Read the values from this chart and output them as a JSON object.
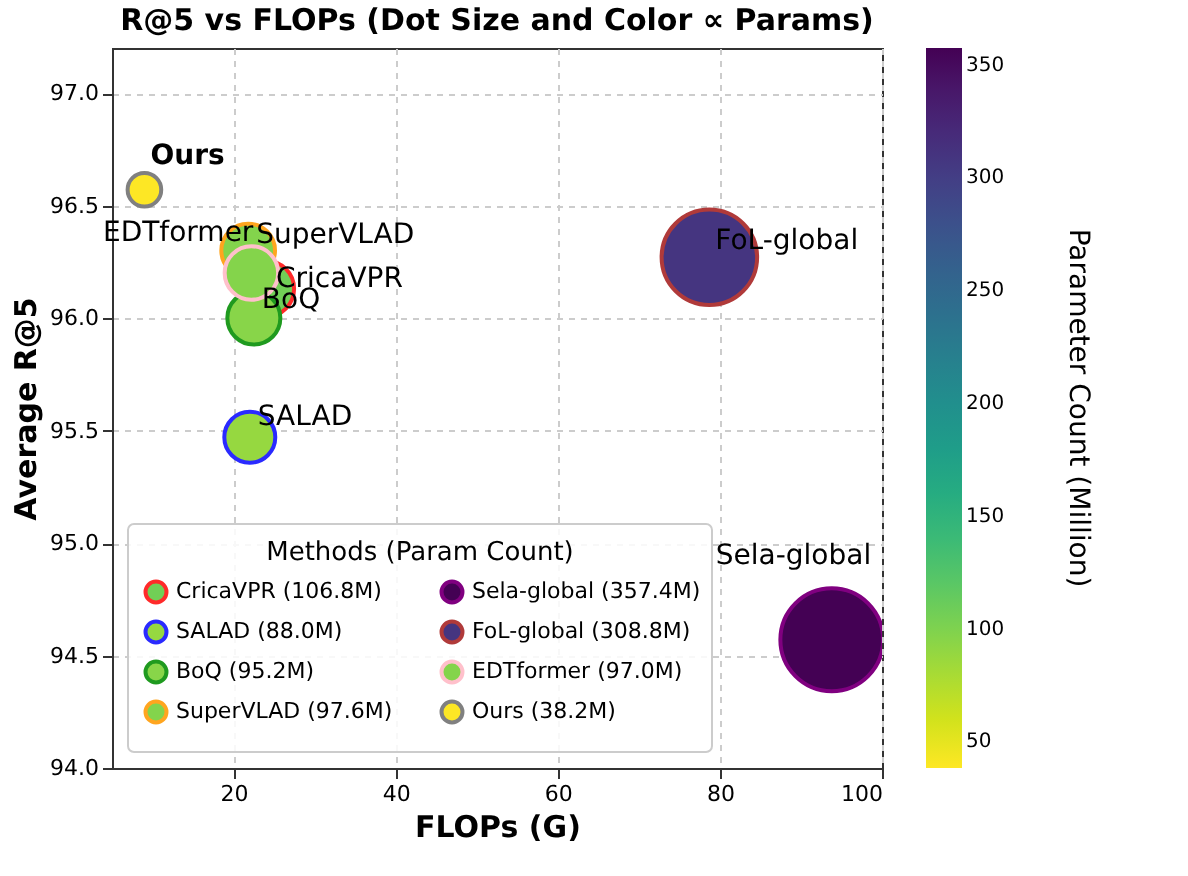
{
  "chart_data": {
    "type": "bubble",
    "title": "R@5 vs FLOPs (Dot Size and Color ∝ Params)",
    "xlabel": "FLOPs (G)",
    "ylabel": "Average R@5",
    "clabel": "Parameter Count (Million)",
    "legend_title": "Methods (Param Count)",
    "xlim": [
      5,
      100
    ],
    "xticks": [
      20,
      40,
      60,
      80,
      100
    ],
    "ylim": [
      94.0,
      97.2
    ],
    "yticks": [
      {
        "value": 94,
        "label": "94.0"
      },
      94.5,
      {
        "value": 95,
        "label": "95.0"
      },
      95.5,
      {
        "value": 96,
        "label": "96.0"
      },
      96.5,
      {
        "value": 97,
        "label": "97.0"
      }
    ],
    "clim": [
      38.2,
      357.4
    ],
    "cticks": [
      50,
      100,
      150,
      200,
      250,
      300,
      350
    ],
    "grid": true,
    "legend": "bottom left",
    "marker": "circle",
    "series": [
      {
        "name": "CricaVPR (106.8M)",
        "color": "#ff2a2a",
        "x": [
          24.0
        ],
        "values": [
          96.13
        ],
        "sizes": [
          0.299
        ],
        "cvalues": [
          106.8
        ]
      },
      {
        "name": "SALAD (88.0M)",
        "color": "#2a2aff",
        "x": [
          22.0
        ],
        "values": [
          95.47
        ],
        "sizes": [
          0.246
        ],
        "cvalues": [
          88.0
        ]
      },
      {
        "name": "BoQ (95.2M)",
        "color": "#1f9a1f",
        "x": [
          22.5
        ],
        "values": [
          96.0
        ],
        "sizes": [
          0.266
        ],
        "cvalues": [
          95.2
        ]
      },
      {
        "name": "SuperVLAD (97.6M)",
        "color": "#ffa51f",
        "x": [
          21.8
        ],
        "values": [
          96.3
        ],
        "sizes": [
          0.273
        ],
        "cvalues": [
          97.6
        ]
      },
      {
        "name": "Sela-global (357.4M)",
        "color": "#800080",
        "x": [
          93.8
        ],
        "values": [
          94.57
        ],
        "sizes": [
          1.0
        ],
        "cvalues": [
          357.4
        ]
      },
      {
        "name": "FoL-global (308.8M)",
        "color": "#b03a3a",
        "x": [
          78.7
        ],
        "values": [
          96.27
        ],
        "sizes": [
          0.864
        ],
        "cvalues": [
          308.8
        ]
      },
      {
        "name": "EDTformer (97.0M)",
        "color": "#ffc0cb",
        "x": [
          22.2
        ],
        "values": [
          96.2
        ],
        "sizes": [
          0.271
        ],
        "cvalues": [
          97.0
        ]
      },
      {
        "name": "Ours (38.2M)",
        "color": "#808080",
        "x": [
          9.0
        ],
        "values": [
          96.57
        ],
        "sizes": [
          0.107
        ],
        "cvalues": [
          38.2
        ]
      }
    ],
    "annotations": [
      {
        "text": "CricaVPR",
        "x": 24.0,
        "y": 96.13
      },
      {
        "text": "SALAD",
        "x": 22.0,
        "y": 95.47
      },
      {
        "text": "BoQ",
        "x": 22.5,
        "y": 96.0
      },
      {
        "text": "SuperVLAD",
        "x": 21.8,
        "y": 96.3
      },
      {
        "text": "Sela-global",
        "x": 93.8,
        "y": 94.57
      },
      {
        "text": "FoL-global",
        "x": 78.7,
        "y": 96.27
      },
      {
        "text": "EDTformer",
        "x": 22.2,
        "y": 96.2
      },
      {
        "text": "Ours",
        "x": 9.0,
        "y": 96.57
      }
    ]
  }
}
